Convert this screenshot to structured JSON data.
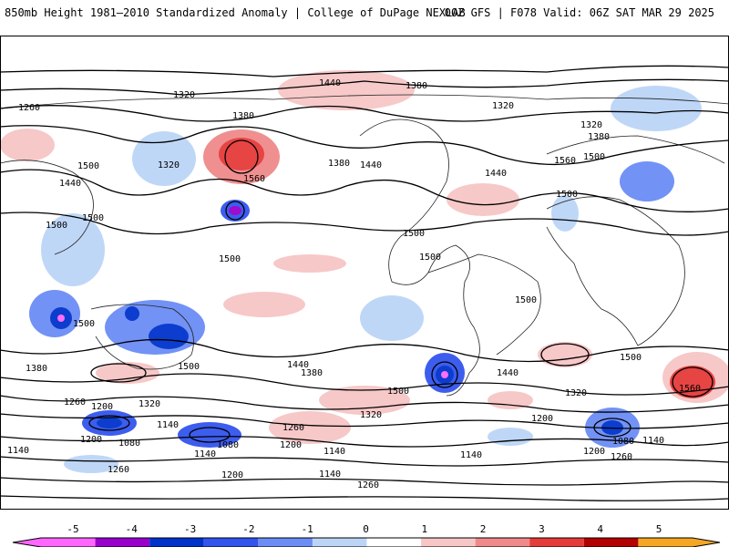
{
  "header": {
    "left_title": "850mb Height 1981–2010 Standardized Anomaly | College of DuPage NEXLAB",
    "right_title": "00Z GFS | F078 Valid: 06Z SAT MAR 29 2025"
  },
  "map": {
    "contour_labels": [
      "1440",
      "1380",
      "1320",
      "1260",
      "1320",
      "1380",
      "1500",
      "1320",
      "1560",
      "1380",
      "1440",
      "1500",
      "1560",
      "1320",
      "1380",
      "1440",
      "1500",
      "1500",
      "1440",
      "1500",
      "1500",
      "1500",
      "1500",
      "1500",
      "1500",
      "1500",
      "1440",
      "1380",
      "1500",
      "1500",
      "1380",
      "1440",
      "1260",
      "1200",
      "1320",
      "1140",
      "1200",
      "1080",
      "1140",
      "1080",
      "1260",
      "1200",
      "1140",
      "1140",
      "1260",
      "1200",
      "1320",
      "1260",
      "1200",
      "1140",
      "1140",
      "1080",
      "1320",
      "1200",
      "1260",
      "1140",
      "1560"
    ]
  },
  "colorbar": {
    "ticks": [
      "-5",
      "-4",
      "-3",
      "-2",
      "-1",
      "0",
      "1",
      "2",
      "3",
      "4",
      "5"
    ],
    "colors": [
      "#ff66ff",
      "#9900cc",
      "#0033cc",
      "#3355ee",
      "#6b8df5",
      "#bcd5f7",
      "#ffffff",
      "#f7c6c6",
      "#f08a8a",
      "#e63b3b",
      "#b30000",
      "#f5a623"
    ]
  }
}
